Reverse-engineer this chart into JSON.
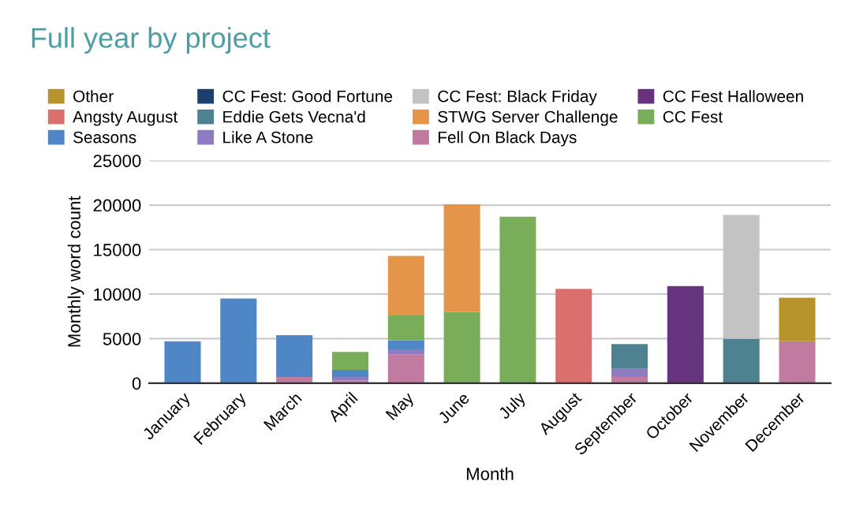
{
  "chart_data": {
    "type": "bar",
    "title": "Full year by project",
    "xlabel": "Month",
    "ylabel": "Monthly word count",
    "categories": [
      "January",
      "February",
      "March",
      "April",
      "May",
      "June",
      "July",
      "August",
      "September",
      "October",
      "November",
      "December"
    ],
    "stacked": true,
    "ylim": [
      0,
      25000
    ],
    "yticks": [
      0,
      5000,
      10000,
      15000,
      20000,
      25000
    ],
    "grid": "y",
    "legend": "top",
    "series": [
      {
        "name": "Fell On Black Days",
        "color": "#c27ba0",
        "values": [
          null,
          null,
          700,
          300,
          3200,
          null,
          null,
          null,
          700,
          null,
          null,
          4700
        ]
      },
      {
        "name": "Like A Stone",
        "color": "#8e7cc3",
        "values": [
          null,
          null,
          null,
          400,
          600,
          null,
          null,
          null,
          900,
          null,
          null,
          null
        ]
      },
      {
        "name": "Seasons",
        "color": "#4f86c6",
        "values": [
          4700,
          9500,
          4700,
          800,
          1000,
          null,
          null,
          null,
          null,
          null,
          null,
          null
        ]
      },
      {
        "name": "CC Fest",
        "color": "#79ad5a",
        "values": [
          null,
          null,
          null,
          2000,
          2800,
          8000,
          18700,
          null,
          null,
          null,
          null,
          null
        ]
      },
      {
        "name": "STWG Server Challenge",
        "color": "#e4954a",
        "values": [
          null,
          null,
          null,
          null,
          6700,
          12100,
          null,
          null,
          null,
          null,
          null,
          null
        ]
      },
      {
        "name": "Eddie Gets Vecna'd",
        "color": "#4e8290",
        "values": [
          null,
          null,
          null,
          null,
          null,
          null,
          null,
          null,
          2800,
          null,
          5000,
          null
        ]
      },
      {
        "name": "Angsty August",
        "color": "#d9706e",
        "values": [
          null,
          null,
          null,
          null,
          null,
          null,
          null,
          10600,
          null,
          null,
          null,
          null
        ]
      },
      {
        "name": "CC Fest Halloween",
        "color": "#66337f",
        "values": [
          null,
          null,
          null,
          null,
          null,
          null,
          null,
          null,
          null,
          10900,
          null,
          null
        ]
      },
      {
        "name": "CC Fest: Black Friday",
        "color": "#c3c3c3",
        "values": [
          null,
          null,
          null,
          null,
          null,
          null,
          null,
          null,
          null,
          null,
          13900,
          null
        ]
      },
      {
        "name": "CC Fest: Good Fortune",
        "color": "#1c3f6e",
        "values": [
          null,
          null,
          null,
          null,
          null,
          null,
          null,
          null,
          null,
          null,
          null,
          null
        ]
      },
      {
        "name": "Other",
        "color": "#b7932c",
        "values": [
          null,
          null,
          null,
          null,
          null,
          null,
          null,
          null,
          null,
          null,
          null,
          4900
        ]
      }
    ]
  }
}
